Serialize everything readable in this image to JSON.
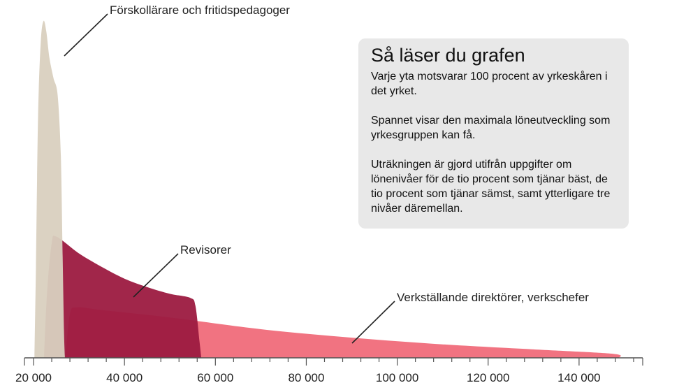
{
  "colors": {
    "forskollarare": "#d9d0bf",
    "revisorer": "#9c1a40",
    "vd": "#f06473",
    "axis": "#555555",
    "leader": "#222222",
    "box": "#e8e8e8"
  },
  "info_box": {
    "title": "Så läser du grafen",
    "paragraphs": [
      "Varje yta motsvarar 100 procent av yrkeskåren i det yrket.",
      "Spannet visar den maximala löneutveckling som yrkesgruppen kan få.",
      "Uträkningen är gjord utifrån uppgifter om lönenivåer för de tio procent som tjänar bäst, de tio procent som tjänar sämst, samt ytterligare tre nivåer däremellan."
    ]
  },
  "chart_data": {
    "type": "area",
    "title": "",
    "xlabel": "",
    "ylabel": "",
    "xlim": [
      18000,
      154000
    ],
    "x_ticks": [
      20000,
      40000,
      60000,
      80000,
      100000,
      120000,
      140000
    ],
    "x_tick_labels": [
      "20 000",
      "40 000",
      "60 000",
      "80 000",
      "100 000",
      "120 000",
      "140 000"
    ],
    "grid": false,
    "series": [
      {
        "key": "vd",
        "name": "Verkställande direktörer, verkschefer",
        "color": "#f06473",
        "x": [
          27000,
          28000,
          29500,
          35000,
          50000,
          70000,
          90000,
          110000,
          130000,
          147500,
          148800,
          149000
        ],
        "y": [
          0.0,
          0.13,
          0.15,
          0.142,
          0.12,
          0.085,
          0.06,
          0.04,
          0.025,
          0.012,
          0.0,
          0.0
        ]
      },
      {
        "key": "revisorer",
        "name": "Revisorer",
        "color": "#9c1a40",
        "x": [
          22300,
          23000,
          24000,
          25000,
          30000,
          35000,
          40000,
          45000,
          50000,
          54500,
          55600,
          56500,
          56900
        ],
        "y": [
          0.0,
          0.2,
          0.34,
          0.36,
          0.31,
          0.27,
          0.235,
          0.21,
          0.19,
          0.178,
          0.155,
          0.05,
          0.0
        ]
      },
      {
        "key": "forskollarare",
        "name": "Förskollärare och fritidspedagoger",
        "color": "#d9d0bf",
        "x": [
          20200,
          20500,
          21000,
          21600,
          22200,
          22800,
          23500,
          24400,
          25300,
          26000,
          26400,
          26700,
          26900
        ],
        "y": [
          0.0,
          0.25,
          0.72,
          0.94,
          1.0,
          0.97,
          0.89,
          0.83,
          0.78,
          0.6,
          0.3,
          0.08,
          0.0
        ]
      }
    ],
    "annotations": [
      {
        "series": "forskollarare",
        "text": "Förskollärare och fritidspedagoger"
      },
      {
        "series": "revisorer",
        "text": "Revisorer"
      },
      {
        "series": "vd",
        "text": "Verkställande direktörer, verkschefer"
      }
    ]
  }
}
